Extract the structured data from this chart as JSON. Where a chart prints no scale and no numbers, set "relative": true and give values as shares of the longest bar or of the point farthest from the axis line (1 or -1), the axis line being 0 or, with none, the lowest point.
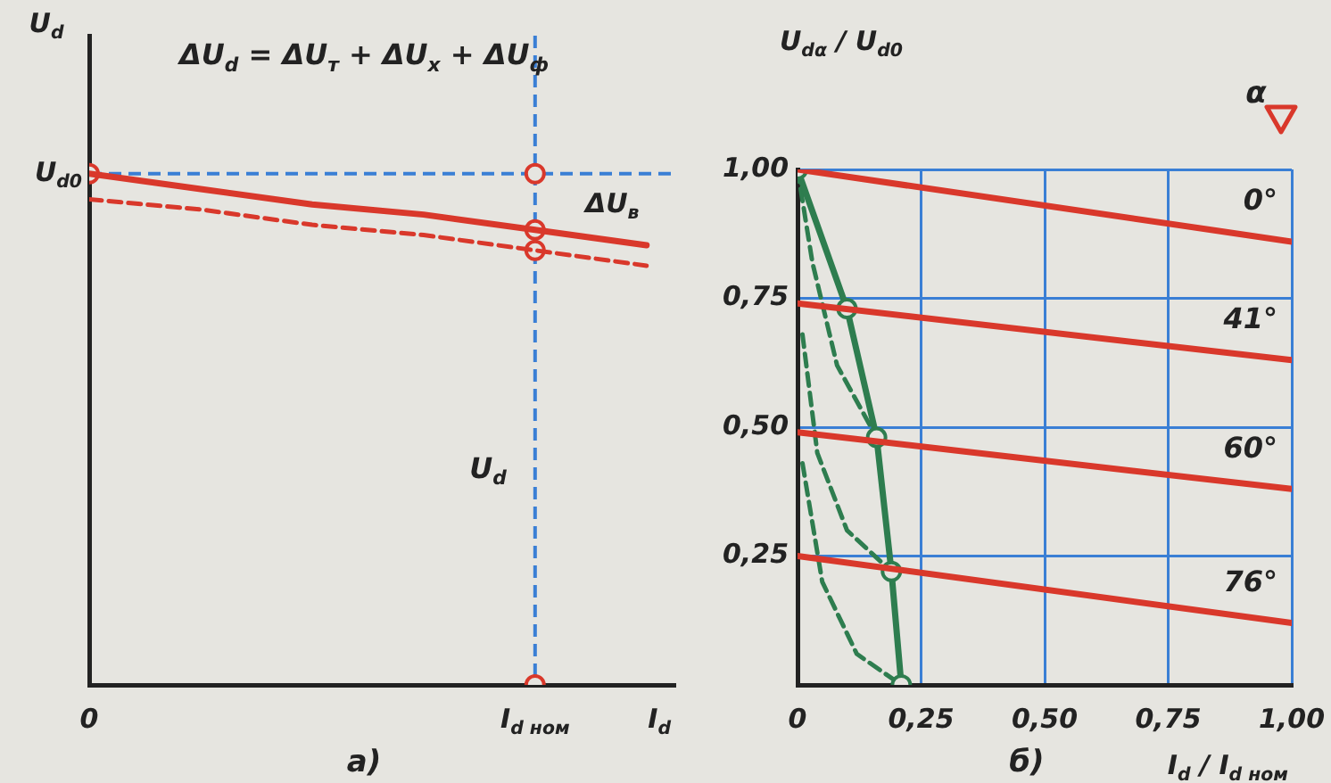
{
  "chart_data": [
    {
      "type": "line",
      "relative": true,
      "xlabel": "I$_{d}$",
      "ylabel": "U$_{d}$",
      "categories": [
        "0",
        null,
        null,
        null,
        "I$_{d ном}$",
        null
      ],
      "grid": false,
      "legend": false,
      "marker": "none",
      "series": [
        {
          "color": "#d9382b",
          "values": [
            1,
            0.97,
            0.94,
            0.92,
            0.89,
            0.86
          ]
        },
        {
          "color": "#d9382b",
          "line_style": "dashed",
          "values": [
            0.95,
            0.93,
            0.9,
            0.88,
            0.85,
            0.82
          ]
        },
        {
          "type": "scatter",
          "color": "#d9382b",
          "marker": "circle",
          "x": [
            "0",
            "I$_{d ном}$",
            "I$_{d ном}$",
            "I$_{d ном}$",
            "I$_{d ном}$"
          ],
          "values": [
            1,
            1,
            0.89,
            0.85,
            0
          ]
        }
      ],
      "ref_lines": [
        {
          "axis": "y",
          "value": 1,
          "label": "U$_{d0}$",
          "color": "#3a7fd5",
          "line_style": "dashed"
        },
        {
          "axis": "x",
          "value": "I$_{d ном}$",
          "color": "#3a7fd5",
          "line_style": "dashed"
        }
      ],
      "annotations": [
        "ΔU$_{d}$ = ΔU$_{т}$ + ΔU$_{х}$ + ΔU$_{ф}$",
        "ΔU$_{в}$",
        {
          "text": "U$_{d}$",
          "x": "I$_{d ном}$",
          "y": 0.42
        },
        "а)"
      ]
    },
    {
      "type": "line",
      "xlabel": "I$_{d}$ / I$_{d ном}$",
      "ylabel": "U$_{dα}$ / U$_{d0}$",
      "legend_title": "α",
      "xlim": [
        0,
        1
      ],
      "ylim": [
        0,
        1
      ],
      "xticks": [
        0,
        {
          "value": 0.25,
          "label": "0,25"
        },
        {
          "value": 0.5,
          "label": "0,50"
        },
        {
          "value": 0.75,
          "label": "0,75"
        },
        {
          "value": 1,
          "label": "1,00"
        }
      ],
      "yticks": [
        {
          "value": 0,
          "label": null
        },
        {
          "value": 0.25,
          "label": "0,25"
        },
        {
          "value": 0.5,
          "label": "0,50"
        },
        {
          "value": 0.75,
          "label": "0,75"
        },
        {
          "value": 1,
          "label": "1,00"
        }
      ],
      "grid": true,
      "legend": false,
      "marker": "none",
      "series": [
        {
          "name": "0°",
          "color": "#d9382b",
          "x": [
            0,
            1
          ],
          "values": [
            1,
            0.86
          ]
        },
        {
          "name": "41°",
          "color": "#d9382b",
          "x": [
            0,
            1
          ],
          "values": [
            0.74,
            0.63
          ]
        },
        {
          "name": "60°",
          "color": "#d9382b",
          "x": [
            0,
            1
          ],
          "values": [
            0.49,
            0.38
          ]
        },
        {
          "name": "76°",
          "color": "#d9382b",
          "x": [
            0,
            1
          ],
          "values": [
            0.25,
            0.12
          ]
        },
        {
          "color": "#2e7d4f",
          "marker": "circle",
          "x": [
            0,
            0.1,
            0.16,
            0.19,
            0.21
          ],
          "values": [
            1,
            0.73,
            0.48,
            0.22,
            0
          ]
        },
        {
          "color": "#2e7d4f",
          "line_style": "dashed",
          "x": [
            0,
            0.03,
            0.08,
            0.16
          ],
          "values": [
            1,
            0.82,
            0.62,
            0.48
          ]
        },
        {
          "color": "#2e7d4f",
          "line_style": "dashed",
          "x": [
            0.01,
            0.04,
            0.1,
            0.19
          ],
          "values": [
            0.68,
            0.45,
            0.3,
            0.22
          ]
        },
        {
          "color": "#2e7d4f",
          "line_style": "dashed",
          "x": [
            0.01,
            0.05,
            0.12,
            0.21
          ],
          "values": [
            0.43,
            0.2,
            0.06,
            0
          ]
        }
      ],
      "annotations": [
        "б)"
      ]
    }
  ]
}
